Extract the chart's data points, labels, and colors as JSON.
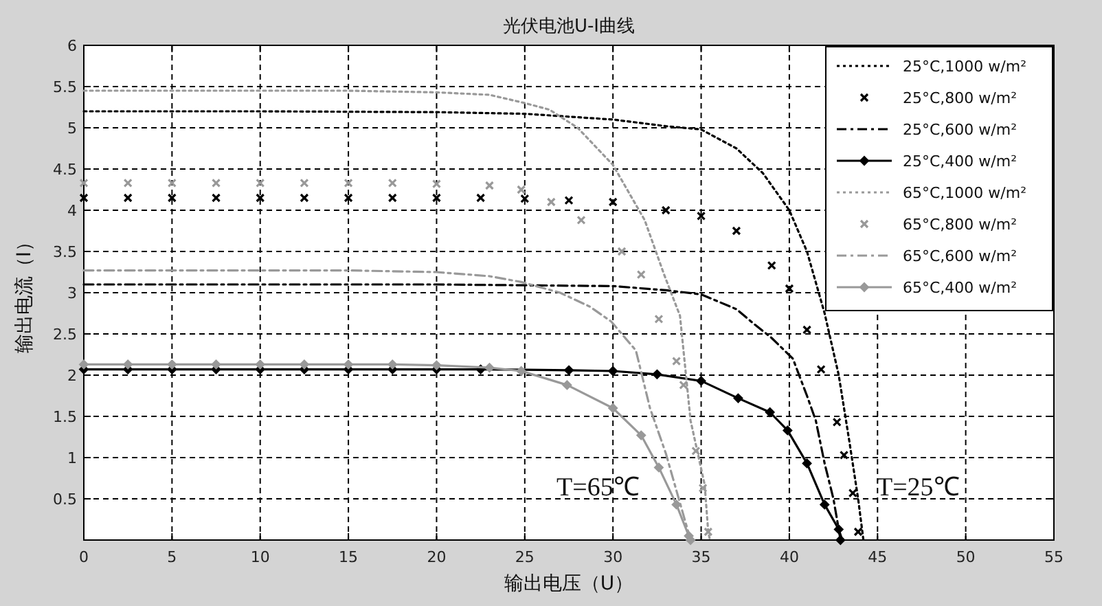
{
  "chart_data": {
    "type": "line",
    "title": "光伏电池U-I曲线",
    "xlabel": "输出电压（U）",
    "ylabel": "输出电流（I）",
    "xlim": [
      0,
      55
    ],
    "xticks": [
      0,
      5,
      10,
      15,
      20,
      25,
      30,
      35,
      40,
      45,
      50,
      55
    ],
    "ylim": [
      0,
      6
    ],
    "yticks": [
      0.5,
      1,
      1.5,
      2,
      2.5,
      3,
      3.5,
      4,
      4.5,
      5,
      5.5,
      6
    ],
    "grid": true,
    "legend": "top right",
    "annotations": [
      "T=65℃",
      "T=25℃"
    ],
    "series": [
      {
        "name": "25°C,1000 w/m²",
        "color": "#000000",
        "line_style": "dotted",
        "marker": "none",
        "x": [
          0,
          10,
          20,
          25,
          30,
          33,
          35,
          37,
          38.5,
          40,
          41,
          42,
          42.8,
          43.4,
          43.9,
          44.2
        ],
        "values": [
          5.2,
          5.2,
          5.19,
          5.17,
          5.1,
          5.02,
          4.98,
          4.75,
          4.45,
          4.0,
          3.5,
          2.75,
          2.0,
          1.2,
          0.5,
          0
        ]
      },
      {
        "name": "25°C,800 w/m²",
        "type": "scatter",
        "color": "#000000",
        "marker": "cross",
        "x": [
          0,
          2.5,
          5,
          7.5,
          10,
          12.5,
          15,
          17.5,
          20,
          22.5,
          25,
          27.5,
          30,
          33,
          35,
          37,
          39,
          40,
          41,
          41.8,
          42.7,
          43.1,
          43.6,
          43.9
        ],
        "values": [
          4.15,
          4.15,
          4.15,
          4.15,
          4.15,
          4.15,
          4.15,
          4.15,
          4.15,
          4.15,
          4.14,
          4.12,
          4.1,
          4.0,
          3.93,
          3.75,
          3.33,
          3.05,
          2.55,
          2.07,
          1.43,
          1.03,
          0.57,
          0.1
        ]
      },
      {
        "name": "25°C,600 w/m²",
        "color": "#000000",
        "line_style": "dashed",
        "marker": "none",
        "x": [
          0,
          20,
          30,
          33,
          35,
          37,
          38,
          39,
          40.2,
          41,
          41.5,
          42,
          42.5,
          42.8,
          43
        ],
        "values": [
          3.1,
          3.1,
          3.08,
          3.03,
          2.98,
          2.8,
          2.62,
          2.45,
          2.2,
          1.75,
          1.45,
          0.93,
          0.5,
          0.13,
          0
        ]
      },
      {
        "name": "25°C,400 w/m²",
        "color": "#000000",
        "line_style": "solid",
        "marker": "diamond",
        "x": [
          0,
          2.5,
          5,
          7.5,
          10,
          12.5,
          15,
          17.5,
          20,
          22.5,
          27.5,
          30,
          32.5,
          35,
          37.1,
          38.9,
          39.9,
          41,
          42,
          42.8,
          42.9
        ],
        "values": [
          2.07,
          2.07,
          2.07,
          2.07,
          2.07,
          2.07,
          2.07,
          2.07,
          2.07,
          2.07,
          2.06,
          2.05,
          2.01,
          1.93,
          1.72,
          1.55,
          1.33,
          0.93,
          0.43,
          0.13,
          0
        ]
      },
      {
        "name": "65°C,1000 w/m²",
        "color": "#999999",
        "line_style": "dotted",
        "marker": "none",
        "x": [
          0,
          15,
          20,
          23,
          25,
          26.4,
          28,
          30,
          31.8,
          32.9,
          33.8,
          34.4,
          35.2,
          35.4,
          35.5
        ],
        "values": [
          5.45,
          5.45,
          5.43,
          5.4,
          5.3,
          5.22,
          5.0,
          4.55,
          3.88,
          3.22,
          2.72,
          1.45,
          0.67,
          0.1,
          0
        ]
      },
      {
        "name": "65°C,800 w/m²",
        "type": "scatter",
        "color": "#999999",
        "marker": "cross",
        "x": [
          0,
          2.5,
          5,
          7.5,
          10,
          12.5,
          15,
          17.5,
          20,
          23,
          24.8,
          26.5,
          28.2,
          30.5,
          31.6,
          32.6,
          33.6,
          34,
          34.7,
          35.1,
          35.4
        ],
        "values": [
          4.33,
          4.33,
          4.33,
          4.33,
          4.33,
          4.33,
          4.33,
          4.33,
          4.32,
          4.3,
          4.25,
          4.1,
          3.88,
          3.5,
          3.22,
          2.68,
          2.17,
          1.88,
          1.08,
          0.63,
          0.1
        ]
      },
      {
        "name": "65°C,600 w/m²",
        "color": "#999999",
        "line_style": "dashed",
        "marker": "none",
        "x": [
          0,
          15,
          20,
          23,
          24.8,
          27,
          28.7,
          29.9,
          31.3,
          32.1,
          33,
          33.6,
          34.2,
          34.4
        ],
        "values": [
          3.27,
          3.27,
          3.25,
          3.2,
          3.13,
          3.0,
          2.83,
          2.65,
          2.3,
          1.6,
          1.05,
          0.6,
          0.15,
          0
        ]
      },
      {
        "name": "65°C,400 w/m²",
        "color": "#999999",
        "line_style": "solid",
        "marker": "diamond",
        "x": [
          0,
          2.5,
          5,
          7.5,
          10,
          12.5,
          15,
          17.5,
          20,
          23,
          24.8,
          27.4,
          30,
          31.6,
          32.6,
          33.6,
          34.3,
          34.4
        ],
        "values": [
          2.13,
          2.13,
          2.13,
          2.13,
          2.13,
          2.13,
          2.13,
          2.13,
          2.12,
          2.09,
          2.05,
          1.88,
          1.6,
          1.27,
          0.88,
          0.43,
          0.05,
          0
        ]
      }
    ]
  }
}
